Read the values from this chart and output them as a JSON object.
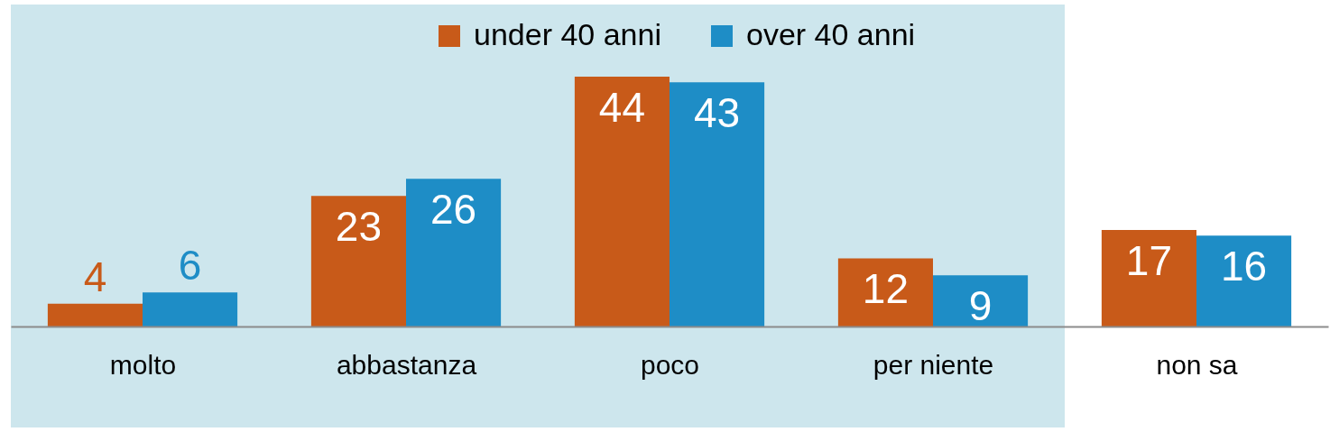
{
  "chart_data": {
    "type": "bar",
    "categories": [
      "molto",
      "abbastanza",
      "poco",
      "per niente",
      "non sa"
    ],
    "series": [
      {
        "name": "under 40 anni",
        "color": "#c85a19",
        "values": [
          4,
          23,
          44,
          12,
          17
        ]
      },
      {
        "name": "over 40 anni",
        "color": "#1e8dc6",
        "values": [
          6,
          26,
          43,
          9,
          16
        ]
      }
    ],
    "data_labels": true,
    "legend": "top",
    "bands": [
      {
        "axis": "x",
        "from": "molto",
        "to": "per niente",
        "color": "#cde6ed"
      }
    ]
  }
}
